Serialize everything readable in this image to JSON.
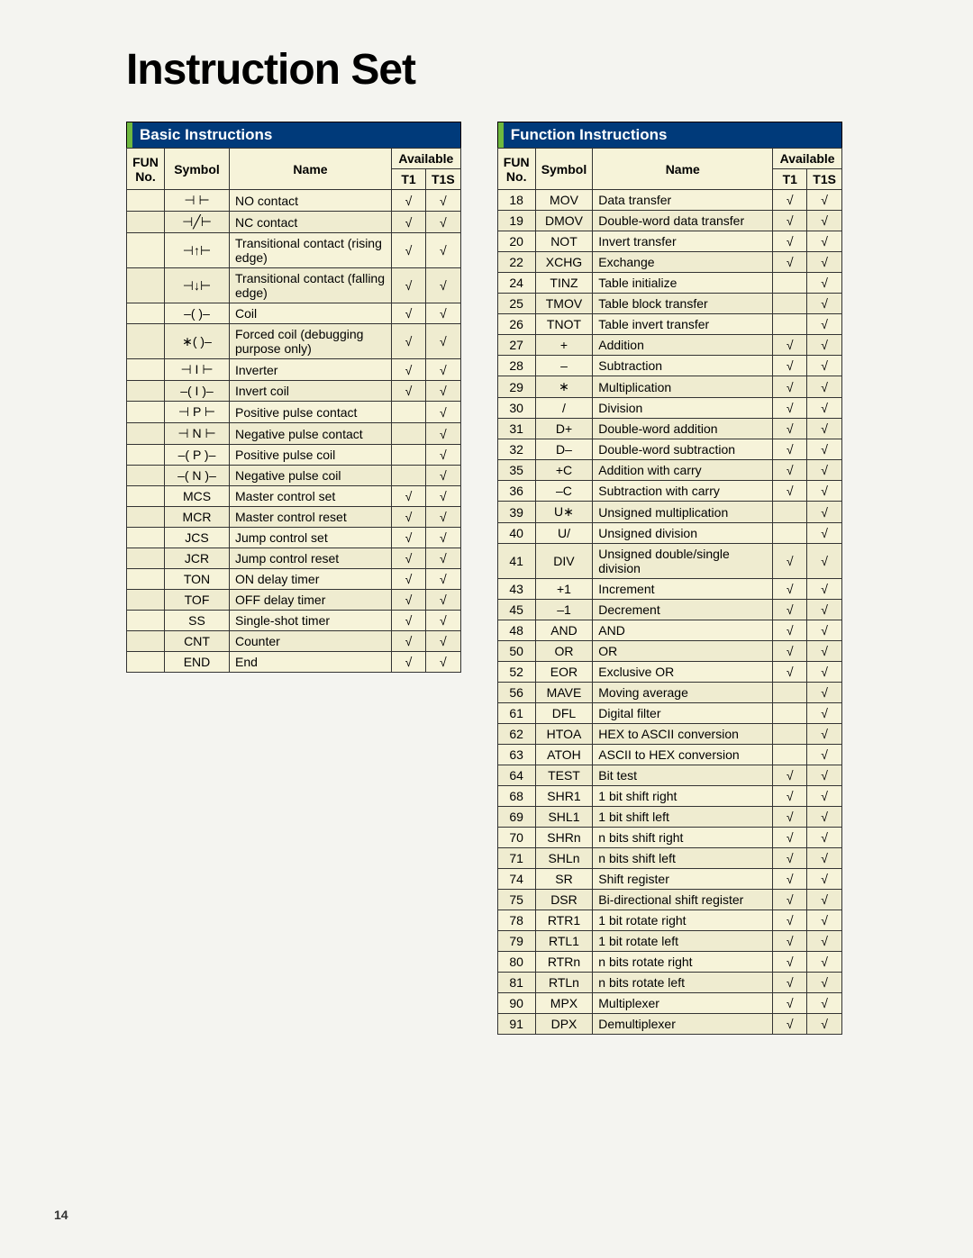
{
  "page_title": "Instruction Set",
  "page_number": "14",
  "check": "√",
  "colors": {
    "header_bg": "#003a7a",
    "header_text": "#ffffff",
    "accent_bar": "#6fb93f",
    "row_bg": "#f6f3d9",
    "row_alt_bg": "#efecd0",
    "border": "#333333",
    "page_bg": "#f4f4f0"
  },
  "tables": {
    "basic": {
      "title": "Basic Instructions",
      "head": {
        "fun": "FUN No.",
        "symbol": "Symbol",
        "name": "Name",
        "avail": "Available",
        "t1": "T1",
        "t1s": "T1S"
      },
      "rows": [
        {
          "fun": "",
          "symbol": "⊣  ⊢",
          "name": "NO contact",
          "t1": true,
          "t1s": true
        },
        {
          "fun": "",
          "symbol": "⊣╱⊢",
          "name": "NC contact",
          "t1": true,
          "t1s": true
        },
        {
          "fun": "",
          "symbol": "⊣↑⊢",
          "name": "Transitional contact (rising edge)",
          "t1": true,
          "t1s": true
        },
        {
          "fun": "",
          "symbol": "⊣↓⊢",
          "name": "Transitional contact (falling edge)",
          "t1": true,
          "t1s": true
        },
        {
          "fun": "",
          "symbol": "–(  )–",
          "name": "Coil",
          "t1": true,
          "t1s": true
        },
        {
          "fun": "",
          "symbol": "∗(  )–",
          "name": "Forced coil (debugging purpose only)",
          "t1": true,
          "t1s": true
        },
        {
          "fun": "",
          "symbol": "⊣ I ⊢",
          "name": "Inverter",
          "t1": true,
          "t1s": true
        },
        {
          "fun": "",
          "symbol": "–( I )–",
          "name": "Invert coil",
          "t1": true,
          "t1s": true
        },
        {
          "fun": "",
          "symbol": "⊣ P ⊢",
          "name": "Positive pulse contact",
          "t1": false,
          "t1s": true
        },
        {
          "fun": "",
          "symbol": "⊣ N ⊢",
          "name": "Negative pulse contact",
          "t1": false,
          "t1s": true
        },
        {
          "fun": "",
          "symbol": "–( P )–",
          "name": "Positive pulse coil",
          "t1": false,
          "t1s": true
        },
        {
          "fun": "",
          "symbol": "–( N )–",
          "name": "Negative pulse coil",
          "t1": false,
          "t1s": true
        },
        {
          "fun": "",
          "symbol": "MCS",
          "name": "Master control set",
          "t1": true,
          "t1s": true
        },
        {
          "fun": "",
          "symbol": "MCR",
          "name": "Master control reset",
          "t1": true,
          "t1s": true
        },
        {
          "fun": "",
          "symbol": "JCS",
          "name": "Jump control set",
          "t1": true,
          "t1s": true
        },
        {
          "fun": "",
          "symbol": "JCR",
          "name": "Jump control reset",
          "t1": true,
          "t1s": true
        },
        {
          "fun": "",
          "symbol": "TON",
          "name": "ON delay timer",
          "t1": true,
          "t1s": true
        },
        {
          "fun": "",
          "symbol": "TOF",
          "name": "OFF delay timer",
          "t1": true,
          "t1s": true
        },
        {
          "fun": "",
          "symbol": "SS",
          "name": "Single-shot timer",
          "t1": true,
          "t1s": true
        },
        {
          "fun": "",
          "symbol": "CNT",
          "name": "Counter",
          "t1": true,
          "t1s": true
        },
        {
          "fun": "",
          "symbol": "END",
          "name": "End",
          "t1": true,
          "t1s": true
        }
      ]
    },
    "func": {
      "title": "Function Instructions",
      "head": {
        "fun": "FUN No.",
        "symbol": "Symbol",
        "name": "Name",
        "avail": "Available",
        "t1": "T1",
        "t1s": "T1S"
      },
      "rows": [
        {
          "fun": "18",
          "symbol": "MOV",
          "name": "Data transfer",
          "t1": true,
          "t1s": true
        },
        {
          "fun": "19",
          "symbol": "DMOV",
          "name": "Double-word data transfer",
          "t1": true,
          "t1s": true
        },
        {
          "fun": "20",
          "symbol": "NOT",
          "name": "Invert transfer",
          "t1": true,
          "t1s": true
        },
        {
          "fun": "22",
          "symbol": "XCHG",
          "name": "Exchange",
          "t1": true,
          "t1s": true
        },
        {
          "fun": "24",
          "symbol": "TINZ",
          "name": "Table initialize",
          "t1": false,
          "t1s": true
        },
        {
          "fun": "25",
          "symbol": "TMOV",
          "name": "Table block transfer",
          "t1": false,
          "t1s": true
        },
        {
          "fun": "26",
          "symbol": "TNOT",
          "name": "Table invert transfer",
          "t1": false,
          "t1s": true
        },
        {
          "fun": "27",
          "symbol": "+",
          "name": "Addition",
          "t1": true,
          "t1s": true
        },
        {
          "fun": "28",
          "symbol": "–",
          "name": "Subtraction",
          "t1": true,
          "t1s": true
        },
        {
          "fun": "29",
          "symbol": "∗",
          "name": "Multiplication",
          "t1": true,
          "t1s": true
        },
        {
          "fun": "30",
          "symbol": "/",
          "name": "Division",
          "t1": true,
          "t1s": true
        },
        {
          "fun": "31",
          "symbol": "D+",
          "name": "Double-word addition",
          "t1": true,
          "t1s": true
        },
        {
          "fun": "32",
          "symbol": "D–",
          "name": "Double-word subtraction",
          "t1": true,
          "t1s": true
        },
        {
          "fun": "35",
          "symbol": "+C",
          "name": "Addition with carry",
          "t1": true,
          "t1s": true
        },
        {
          "fun": "36",
          "symbol": "–C",
          "name": "Subtraction with carry",
          "t1": true,
          "t1s": true
        },
        {
          "fun": "39",
          "symbol": "U∗",
          "name": "Unsigned multiplication",
          "t1": false,
          "t1s": true
        },
        {
          "fun": "40",
          "symbol": "U/",
          "name": "Unsigned division",
          "t1": false,
          "t1s": true
        },
        {
          "fun": "41",
          "symbol": "DIV",
          "name": "Unsigned double/single division",
          "t1": true,
          "t1s": true
        },
        {
          "fun": "43",
          "symbol": "+1",
          "name": "Increment",
          "t1": true,
          "t1s": true
        },
        {
          "fun": "45",
          "symbol": "–1",
          "name": "Decrement",
          "t1": true,
          "t1s": true
        },
        {
          "fun": "48",
          "symbol": "AND",
          "name": "AND",
          "t1": true,
          "t1s": true
        },
        {
          "fun": "50",
          "symbol": "OR",
          "name": "OR",
          "t1": true,
          "t1s": true
        },
        {
          "fun": "52",
          "symbol": "EOR",
          "name": "Exclusive OR",
          "t1": true,
          "t1s": true
        },
        {
          "fun": "56",
          "symbol": "MAVE",
          "name": "Moving average",
          "t1": false,
          "t1s": true
        },
        {
          "fun": "61",
          "symbol": "DFL",
          "name": "Digital filter",
          "t1": false,
          "t1s": true
        },
        {
          "fun": "62",
          "symbol": "HTOA",
          "name": "HEX to ASCII conversion",
          "t1": false,
          "t1s": true
        },
        {
          "fun": "63",
          "symbol": "ATOH",
          "name": "ASCII to HEX conversion",
          "t1": false,
          "t1s": true
        },
        {
          "fun": "64",
          "symbol": "TEST",
          "name": "Bit test",
          "t1": true,
          "t1s": true
        },
        {
          "fun": "68",
          "symbol": "SHR1",
          "name": "1 bit shift right",
          "t1": true,
          "t1s": true
        },
        {
          "fun": "69",
          "symbol": "SHL1",
          "name": "1 bit shift left",
          "t1": true,
          "t1s": true
        },
        {
          "fun": "70",
          "symbol": "SHRn",
          "name": "n bits shift right",
          "t1": true,
          "t1s": true
        },
        {
          "fun": "71",
          "symbol": "SHLn",
          "name": "n bits shift left",
          "t1": true,
          "t1s": true
        },
        {
          "fun": "74",
          "symbol": "SR",
          "name": "Shift register",
          "t1": true,
          "t1s": true
        },
        {
          "fun": "75",
          "symbol": "DSR",
          "name": "Bi-directional shift register",
          "t1": true,
          "t1s": true
        },
        {
          "fun": "78",
          "symbol": "RTR1",
          "name": "1 bit rotate right",
          "t1": true,
          "t1s": true
        },
        {
          "fun": "79",
          "symbol": "RTL1",
          "name": "1 bit rotate left",
          "t1": true,
          "t1s": true
        },
        {
          "fun": "80",
          "symbol": "RTRn",
          "name": "n bits rotate right",
          "t1": true,
          "t1s": true
        },
        {
          "fun": "81",
          "symbol": "RTLn",
          "name": "n bits rotate left",
          "t1": true,
          "t1s": true
        },
        {
          "fun": "90",
          "symbol": "MPX",
          "name": "Multiplexer",
          "t1": true,
          "t1s": true
        },
        {
          "fun": "91",
          "symbol": "DPX",
          "name": "Demultiplexer",
          "t1": true,
          "t1s": true
        }
      ]
    }
  }
}
